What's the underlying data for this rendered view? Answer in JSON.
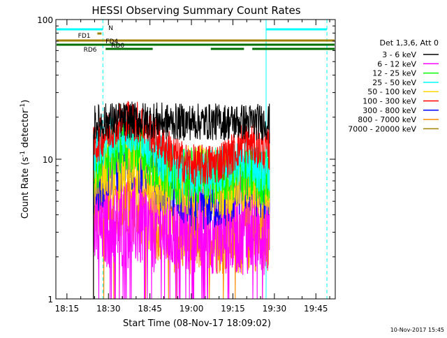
{
  "chart_data": {
    "type": "line",
    "title": "HESSI Observing Summary Count Rates",
    "xlabel": "Start Time (08-Nov-17 18:09:02)",
    "ylabel": "Count Rate (s",
    "ylabel_sup": "-1",
    "ylabel_tail": " detector",
    "ylabel_sup2": "-1",
    "ylabel_close": ")",
    "y_scale": "log",
    "ylim": [
      1,
      100
    ],
    "xlim_minutes": [
      -4,
      97
    ],
    "x_ticks": [
      {
        "m": 0,
        "label": "18:15"
      },
      {
        "m": 15,
        "label": "18:30"
      },
      {
        "m": 30,
        "label": "18:45"
      },
      {
        "m": 45,
        "label": "19:00"
      },
      {
        "m": 60,
        "label": "19:15"
      },
      {
        "m": 75,
        "label": "19:30"
      },
      {
        "m": 90,
        "label": "19:45"
      }
    ],
    "y_tick_labels": [
      {
        "v": 1,
        "label": "1"
      },
      {
        "v": 10,
        "label": "10"
      },
      {
        "v": 100,
        "label": "100"
      }
    ],
    "legend_header": "Det 1,3,6, Att 0",
    "legend_position": "right",
    "data_range_minutes": [
      9.6,
      73.2
    ],
    "series": [
      {
        "name": "3 - 6 keV",
        "color": "#000000",
        "x": [
          9.6,
          13,
          16,
          20,
          24,
          28,
          32,
          36,
          40,
          44,
          48,
          52,
          56,
          60,
          64,
          68,
          72,
          73.2
        ],
        "y": [
          18,
          18.5,
          19,
          19,
          19,
          19,
          19,
          18.5,
          18.5,
          18.5,
          18.5,
          18.5,
          18.5,
          18.5,
          18.5,
          18.5,
          18.5,
          18.5
        ]
      },
      {
        "name": "6 - 12 keV",
        "color": "#ff00ff",
        "x": [
          9.6,
          14,
          20,
          26,
          30,
          35,
          40,
          45,
          50,
          55,
          60,
          65,
          70,
          73.2
        ],
        "y": [
          3,
          3.5,
          3.5,
          3.5,
          3.3,
          3.2,
          3.2,
          3.2,
          3.2,
          3.2,
          3.2,
          3.2,
          3.2,
          3.2
        ]
      },
      {
        "name": "12 - 25 keV",
        "color": "#00ff00",
        "x": [
          9.6,
          12,
          15,
          18,
          21,
          24,
          27,
          30,
          33,
          36,
          40,
          45,
          50,
          55,
          60,
          65,
          70,
          73.2
        ],
        "y": [
          9,
          10,
          11,
          12,
          13,
          13,
          12,
          10,
          8.5,
          8,
          7.5,
          7.5,
          7.5,
          7.5,
          8,
          8,
          7.5,
          7.5
        ]
      },
      {
        "name": "25 - 50 keV",
        "color": "#00ffff",
        "x": [
          9.6,
          12,
          15,
          18,
          21,
          24,
          27,
          30,
          33,
          36,
          40,
          45,
          50,
          55,
          60,
          63,
          66,
          70,
          73.2
        ],
        "y": [
          10,
          12,
          14,
          15,
          16,
          16,
          15,
          13,
          11,
          9.5,
          8.5,
          8,
          8,
          8.5,
          9,
          10,
          9.5,
          8.5,
          8.5
        ]
      },
      {
        "name": "50 - 100 keV",
        "color": "#ffd700",
        "x": [
          9.6,
          13,
          17,
          21,
          25,
          29,
          33,
          38,
          44,
          50,
          56,
          62,
          68,
          73.2
        ],
        "y": [
          8,
          9,
          9.5,
          9.5,
          9,
          8,
          7.5,
          7,
          7,
          7,
          7,
          7,
          7,
          7
        ]
      },
      {
        "name": "100 - 300 keV",
        "color": "#ff0000",
        "x": [
          9.6,
          12,
          15,
          18,
          21,
          24,
          27,
          30,
          33,
          36,
          40,
          45,
          50,
          55,
          60,
          63,
          66,
          70,
          73.2
        ],
        "y": [
          12,
          14,
          16,
          18,
          19,
          19,
          18,
          16,
          14,
          12,
          10,
          9,
          9,
          9.5,
          11,
          13,
          13,
          12,
          12
        ]
      },
      {
        "name": "300 - 800 keV",
        "color": "#0000ff",
        "x": [
          9.6,
          12,
          15,
          18,
          21,
          24,
          27,
          30,
          33,
          36,
          40,
          45,
          50,
          55,
          60,
          63,
          66,
          70,
          73.2
        ],
        "y": [
          6.5,
          7,
          8,
          9,
          9.5,
          9.5,
          9,
          8,
          7,
          6.5,
          5.5,
          5,
          5,
          5,
          5.5,
          6.5,
          6.5,
          6,
          6
        ]
      },
      {
        "name": "800 - 7000 keV",
        "color": "#ff8c00",
        "x": [
          9.6,
          14,
          19,
          24,
          29,
          34,
          40,
          46,
          52,
          58,
          64,
          70,
          73.2
        ],
        "y": [
          4.5,
          5,
          5,
          5,
          4.5,
          3.5,
          3,
          3,
          3,
          3,
          3,
          3.2,
          3.2
        ]
      },
      {
        "name": "7000 - 20000 keV",
        "color": "#a08000",
        "x": [],
        "y": []
      }
    ],
    "obs_bars": [
      {
        "label": "N",
        "color": "#00ffff",
        "segments": [
          [
            -4,
            13
          ],
          [
            72,
            94
          ]
        ],
        "label_m": 15,
        "row": 0
      },
      {
        "label": "FD1",
        "color": "#a08000",
        "segments": [
          [
            11,
            12.5
          ]
        ],
        "label_m": 4,
        "row": 1
      },
      {
        "label": "FD4",
        "color": "#a08000",
        "segments": [
          [
            -4,
            97
          ]
        ],
        "label_m": 14,
        "row": 2
      },
      {
        "label": "RD0",
        "color": "#007000",
        "segments": [
          [
            -4,
            97
          ]
        ],
        "label_m": 16,
        "row": 3
      },
      {
        "label": "RD6",
        "color": "#007000",
        "segments": [
          [
            14,
            31
          ],
          [
            52,
            64
          ],
          [
            67,
            97
          ]
        ],
        "label_m": 6,
        "row": 4
      }
    ],
    "vlines": [
      {
        "m": -4,
        "style": "solid",
        "color": "#00ffff"
      },
      {
        "m": 13,
        "style": "dashed",
        "color": "#00ffff"
      },
      {
        "m": 72,
        "style": "solid",
        "color": "#00ffff"
      },
      {
        "m": 94,
        "style": "dashed",
        "color": "#00ffff"
      }
    ]
  },
  "footer_timestamp": "10-Nov-2017 15:45"
}
